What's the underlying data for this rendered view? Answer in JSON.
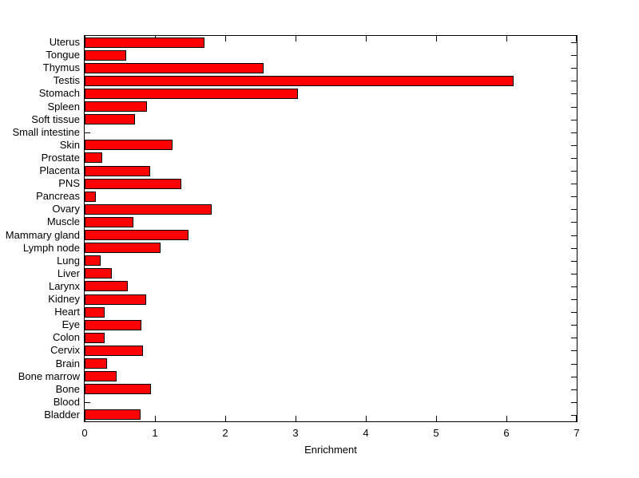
{
  "chart_data": {
    "type": "bar",
    "orientation": "horizontal",
    "title": "",
    "xlabel": "Enrichment",
    "ylabel": "",
    "xlim": [
      0,
      7
    ],
    "x_ticks": [
      0,
      1,
      2,
      3,
      4,
      5,
      6,
      7
    ],
    "grid": false,
    "legend": null,
    "bar_color": "#ff0000",
    "bar_edge_color": "#000000",
    "background_color": "#ffffff",
    "categories": [
      "Uterus",
      "Tongue",
      "Thymus",
      "Testis",
      "Stomach",
      "Spleen",
      "Soft tissue",
      "Small intestine",
      "Skin",
      "Prostate",
      "Placenta",
      "PNS",
      "Pancreas",
      "Ovary",
      "Muscle",
      "Mammary gland",
      "Lymph node",
      "Lung",
      "Liver",
      "Larynx",
      "Kidney",
      "Heart",
      "Eye",
      "Colon",
      "Cervix",
      "Brain",
      "Bone marrow",
      "Bone",
      "Blood",
      "Bladder"
    ],
    "values": [
      1.71,
      0.59,
      2.54,
      6.1,
      3.03,
      0.89,
      0.72,
      0,
      1.25,
      0.25,
      0.93,
      1.38,
      0.16,
      1.81,
      0.69,
      1.48,
      1.08,
      0.23,
      0.39,
      0.61,
      0.87,
      0.28,
      0.81,
      0.28,
      0.83,
      0.32,
      0.46,
      0.94,
      0,
      0.79
    ]
  }
}
